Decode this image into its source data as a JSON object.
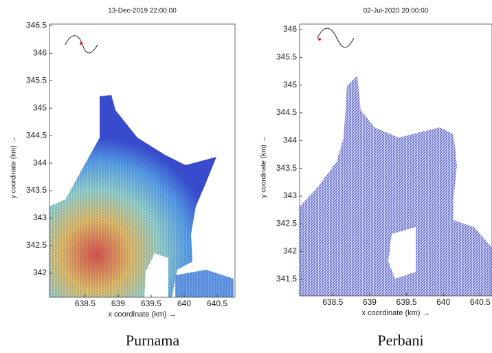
{
  "chart_data": [
    {
      "type": "vector-field",
      "title": "13-Dec-2019 22:00:00",
      "x_label": "x coordinate (km) →",
      "y_label": "y coordinate (km) →",
      "xlim": [
        637.96,
        640.77
      ],
      "ylim": [
        341.56,
        346.53
      ],
      "xticks": [
        638.5,
        639,
        639.5,
        640,
        640.5
      ],
      "yticks": [
        342,
        342.5,
        343,
        343.5,
        344,
        344.5,
        345,
        345.5,
        346,
        346.5
      ],
      "caption": "Purnama"
    },
    {
      "type": "vector-field",
      "title": "02-Jul-2020 20:00:00",
      "x_label": "x coordinate (km) →",
      "y_label": "y coordinate (km) →",
      "xlim": [
        638.05,
        640.66
      ],
      "ylim": [
        341.2,
        346.1
      ],
      "xticks": [
        638.5,
        639,
        639.5,
        640,
        640.5
      ],
      "yticks": [
        341.5,
        342,
        342.5,
        343,
        343.5,
        344,
        344.5,
        345,
        345.5,
        346
      ],
      "caption": "Perbani"
    }
  ]
}
